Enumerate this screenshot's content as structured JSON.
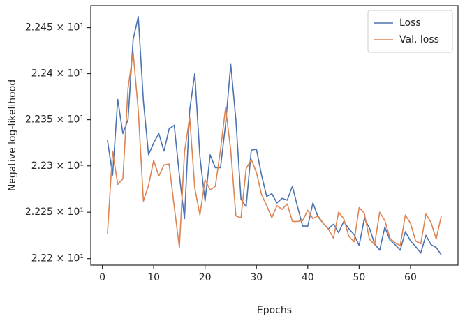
{
  "chart_data": {
    "type": "line",
    "xlabel": "Epochs",
    "ylabel": "Negative log-likelihood",
    "x": [
      1,
      2,
      3,
      4,
      5,
      6,
      7,
      8,
      9,
      10,
      11,
      12,
      13,
      14,
      15,
      16,
      17,
      18,
      19,
      20,
      21,
      22,
      23,
      24,
      25,
      26,
      27,
      28,
      29,
      30,
      31,
      32,
      33,
      34,
      35,
      36,
      37,
      38,
      39,
      40,
      41,
      42,
      43,
      44,
      45,
      46,
      47,
      48,
      49,
      50,
      51,
      52,
      53,
      54,
      55,
      56,
      57,
      58,
      59,
      60,
      61,
      62,
      63,
      64,
      65,
      66
    ],
    "series": [
      {
        "name": "Loss",
        "color": "#4c72b0",
        "values": [
          22.328,
          22.29,
          22.372,
          22.335,
          22.35,
          22.437,
          22.462,
          22.37,
          22.312,
          22.325,
          22.335,
          22.316,
          22.34,
          22.344,
          22.29,
          22.243,
          22.36,
          22.4,
          22.31,
          22.262,
          22.312,
          22.298,
          22.298,
          22.345,
          22.41,
          22.35,
          22.264,
          22.256,
          22.317,
          22.318,
          22.29,
          22.267,
          22.27,
          22.26,
          22.265,
          22.263,
          22.278,
          22.256,
          22.235,
          22.235,
          22.26,
          22.245,
          22.238,
          22.232,
          22.237,
          22.228,
          22.24,
          22.232,
          22.226,
          22.214,
          22.243,
          22.233,
          22.216,
          22.209,
          22.234,
          22.22,
          22.215,
          22.209,
          22.229,
          22.219,
          22.213,
          22.206,
          22.225,
          22.215,
          22.212,
          22.204
        ]
      },
      {
        "name": "Val. loss",
        "color": "#dd8452",
        "values": [
          22.227,
          22.316,
          22.28,
          22.286,
          22.384,
          22.423,
          22.36,
          22.262,
          22.279,
          22.306,
          22.289,
          22.301,
          22.302,
          22.256,
          22.212,
          22.315,
          22.353,
          22.276,
          22.247,
          22.285,
          22.274,
          22.278,
          22.317,
          22.363,
          22.317,
          22.246,
          22.244,
          22.297,
          22.307,
          22.293,
          22.269,
          22.257,
          22.244,
          22.257,
          22.253,
          22.259,
          22.24,
          22.24,
          22.241,
          22.252,
          22.243,
          22.246,
          22.238,
          22.232,
          22.222,
          22.25,
          22.243,
          22.224,
          22.218,
          22.255,
          22.249,
          22.221,
          22.215,
          22.25,
          22.241,
          22.222,
          22.217,
          22.214,
          22.247,
          22.238,
          22.219,
          22.216,
          22.248,
          22.239,
          22.221,
          22.246
        ]
      }
    ],
    "xlim": [
      -2.25,
      69.25
    ],
    "xticks": [
      0,
      10,
      20,
      30,
      40,
      50,
      60
    ],
    "ylim": [
      22.193,
      22.474
    ],
    "ylog": true,
    "yticks": [
      {
        "value": 22.2,
        "label": "2.22 × 10¹"
      },
      {
        "value": 22.25,
        "label": "2.225 × 10¹"
      },
      {
        "value": 22.3,
        "label": "2.23 × 10¹"
      },
      {
        "value": 22.35,
        "label": "2.235 × 10¹"
      },
      {
        "value": 22.4,
        "label": "2.24 × 10¹"
      },
      {
        "value": 22.45,
        "label": "2.245 × 10¹"
      }
    ],
    "grid": false,
    "legend": "upper right"
  }
}
